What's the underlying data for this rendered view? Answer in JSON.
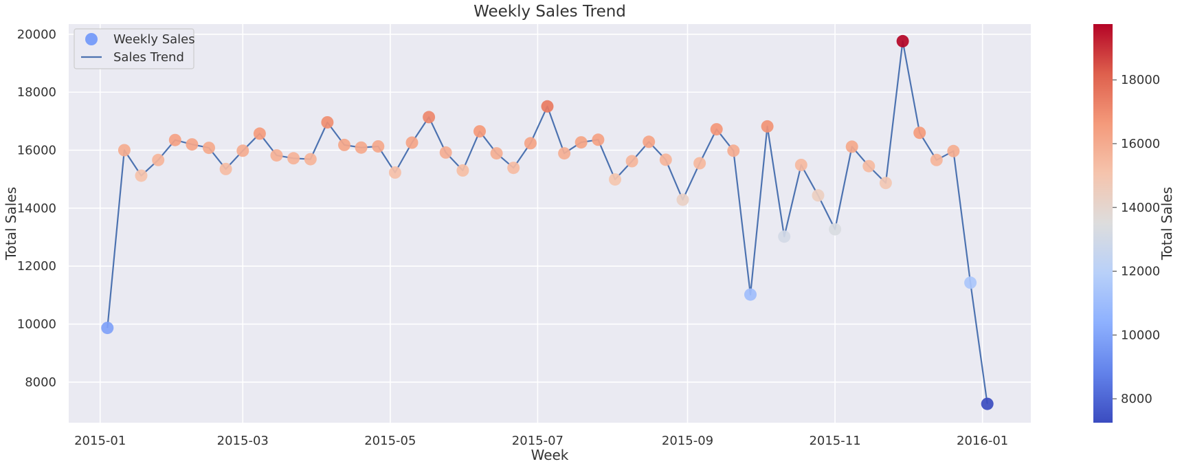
{
  "chart_data": {
    "type": "scatter",
    "title": "Weekly Sales Trend",
    "xlabel": "Week",
    "ylabel": "Total Sales",
    "colorbar_label": "Total Sales",
    "colormap": "coolwarm",
    "grid": true,
    "legend_position": "top-left",
    "xlim": [
      "2014-12-19",
      "2016-01-21"
    ],
    "ylim": [
      6600,
      20350
    ],
    "x_ticks": [
      "2015-01",
      "2015-03",
      "2015-05",
      "2015-07",
      "2015-09",
      "2015-11",
      "2016-01"
    ],
    "x_tick_dates": [
      "2015-01-01",
      "2015-03-01",
      "2015-05-01",
      "2015-07-01",
      "2015-09-01",
      "2015-11-01",
      "2016-01-01"
    ],
    "y_ticks": [
      8000,
      10000,
      12000,
      14000,
      16000,
      18000,
      20000
    ],
    "colorbar_ticks": [
      8000,
      10000,
      12000,
      14000,
      16000,
      18000
    ],
    "color_range": [
      7250,
      19750
    ],
    "series": [
      {
        "name": "Weekly Sales",
        "kind": "scatter"
      },
      {
        "name": "Sales Trend",
        "kind": "line",
        "color": "#4c72b0"
      }
    ],
    "x": [
      "2015-01-04",
      "2015-01-11",
      "2015-01-18",
      "2015-01-25",
      "2015-02-01",
      "2015-02-08",
      "2015-02-15",
      "2015-02-22",
      "2015-03-01",
      "2015-03-08",
      "2015-03-15",
      "2015-03-22",
      "2015-03-29",
      "2015-04-05",
      "2015-04-12",
      "2015-04-19",
      "2015-04-26",
      "2015-05-03",
      "2015-05-10",
      "2015-05-17",
      "2015-05-24",
      "2015-05-31",
      "2015-06-07",
      "2015-06-14",
      "2015-06-21",
      "2015-06-28",
      "2015-07-05",
      "2015-07-12",
      "2015-07-19",
      "2015-07-26",
      "2015-08-02",
      "2015-08-09",
      "2015-08-16",
      "2015-08-23",
      "2015-08-30",
      "2015-09-06",
      "2015-09-13",
      "2015-09-20",
      "2015-09-27",
      "2015-10-04",
      "2015-10-11",
      "2015-10-18",
      "2015-10-25",
      "2015-11-01",
      "2015-11-08",
      "2015-11-15",
      "2015-11-22",
      "2015-11-29",
      "2015-12-06",
      "2015-12-13",
      "2015-12-20",
      "2015-12-27",
      "2016-01-03"
    ],
    "values": [
      9870,
      16000,
      15120,
      15660,
      16350,
      16200,
      16080,
      15350,
      15980,
      16570,
      15820,
      15720,
      15690,
      16960,
      16180,
      16090,
      16130,
      15230,
      16260,
      17140,
      15920,
      15300,
      16650,
      15890,
      15390,
      16240,
      17510,
      15890,
      16270,
      16360,
      14990,
      15620,
      16290,
      15670,
      14290,
      15550,
      16720,
      15980,
      11020,
      16820,
      13020,
      15490,
      14440,
      13270,
      16120,
      15450,
      14870,
      19760,
      16600,
      15660,
      15970,
      11430,
      7250
    ]
  }
}
